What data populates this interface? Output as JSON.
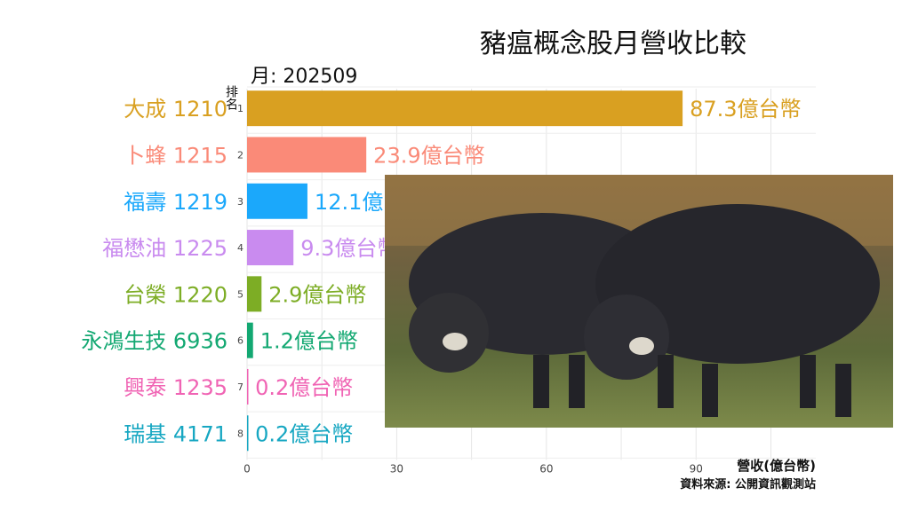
{
  "chart_data": {
    "type": "bar",
    "orientation": "horizontal",
    "title": "豬瘟概念股月營收比較",
    "subtitle": "月: 202509",
    "ylabel": "排名",
    "xlabel": "營收(億台幣)",
    "source": "資料來源: 公開資訊觀測站",
    "value_suffix": "億台幣",
    "xlim": [
      0,
      114
    ],
    "xticks": [
      0,
      30,
      60,
      90
    ],
    "grid": true,
    "categories": [
      "大成 1210",
      "卜蜂 1215",
      "福壽 1219",
      "福懋油 1225",
      "台榮 1220",
      "永鴻生技 6936",
      "興泰 1235",
      "瑞基 4171"
    ],
    "ranks": [
      1,
      2,
      3,
      4,
      5,
      6,
      7,
      8
    ],
    "values": [
      87.3,
      23.9,
      12.1,
      9.3,
      2.9,
      1.2,
      0.2,
      0.2
    ],
    "colors": [
      "#d9a021",
      "#fa8a78",
      "#1ba8fb",
      "#c98bef",
      "#7dad25",
      "#13a872",
      "#f064b4",
      "#17a7c2"
    ]
  },
  "photo": {
    "subject": "wild-boars-photo"
  }
}
